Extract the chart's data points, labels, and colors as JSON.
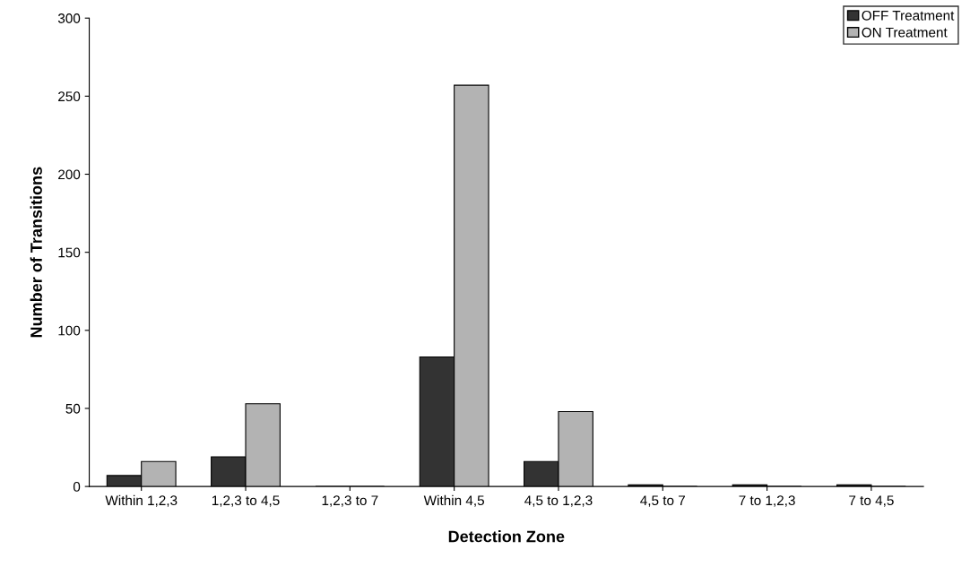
{
  "chart_data": {
    "type": "bar",
    "xlabel": "Detection Zone",
    "ylabel": "Number of Transitions",
    "categories": [
      "Within 1,2,3",
      "1,2,3 to 4,5",
      "1,2,3 to 7",
      "Within 4,5",
      "4,5 to 1,2,3",
      "4,5 to 7",
      "7 to 1,2,3",
      "7 to 4,5"
    ],
    "series": [
      {
        "name": "OFF Treatment",
        "color": "#333333",
        "values": [
          7,
          19,
          0,
          83,
          16,
          1,
          1,
          1
        ]
      },
      {
        "name": "ON Treatment",
        "color": "#b3b3b3",
        "values": [
          16,
          53,
          0,
          257,
          48,
          0,
          0,
          0
        ]
      }
    ],
    "ylim": [
      0,
      300
    ],
    "yticks": [
      0,
      50,
      100,
      150,
      200,
      250,
      300
    ],
    "grid": false,
    "legend": "top right"
  }
}
